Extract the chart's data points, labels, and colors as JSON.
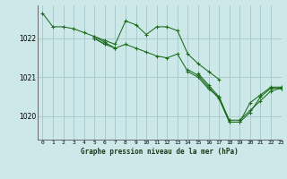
{
  "title": "Graphe pression niveau de la mer (hPa)",
  "bg_color": "#cce8e8",
  "grid_color": "#aacccc",
  "line_color": "#1a6b1a",
  "marker_color": "#1a6b1a",
  "xlim": [
    -0.5,
    23
  ],
  "ylim": [
    1019.4,
    1022.85
  ],
  "yticks": [
    1020,
    1021,
    1022
  ],
  "xticks": [
    0,
    1,
    2,
    3,
    4,
    5,
    6,
    7,
    8,
    9,
    10,
    11,
    12,
    13,
    14,
    15,
    16,
    17,
    18,
    19,
    20,
    21,
    22,
    23
  ],
  "series": [
    [
      1022.65,
      1022.3,
      1022.3,
      1022.25,
      1022.15,
      1022.05,
      1021.95,
      1021.85,
      1022.45,
      1022.35,
      1022.1,
      1022.3,
      1022.3,
      1022.2,
      1021.6,
      1021.35,
      1021.15,
      1020.95,
      null,
      null,
      null,
      null,
      null,
      null
    ],
    [
      null,
      null,
      null,
      null,
      null,
      1022.0,
      1021.85,
      1021.75,
      1021.85,
      1021.75,
      1021.65,
      1021.55,
      1021.5,
      1021.6,
      1021.15,
      1021.0,
      1020.7,
      1020.5,
      1019.85,
      1019.85,
      1020.35,
      1020.55,
      1020.75,
      1020.75
    ],
    [
      null,
      null,
      null,
      null,
      null,
      1022.05,
      1021.9,
      1021.75,
      null,
      null,
      null,
      null,
      null,
      null,
      1021.2,
      1021.05,
      1020.75,
      1020.45,
      1019.85,
      1019.85,
      1020.1,
      1020.5,
      1020.72,
      1020.72
    ],
    [
      null,
      null,
      null,
      null,
      null,
      1022.0,
      1021.85,
      null,
      null,
      null,
      null,
      null,
      null,
      null,
      null,
      1021.1,
      1020.8,
      1020.5,
      1019.9,
      1019.9,
      1020.15,
      1020.4,
      1020.65,
      1020.72
    ]
  ]
}
